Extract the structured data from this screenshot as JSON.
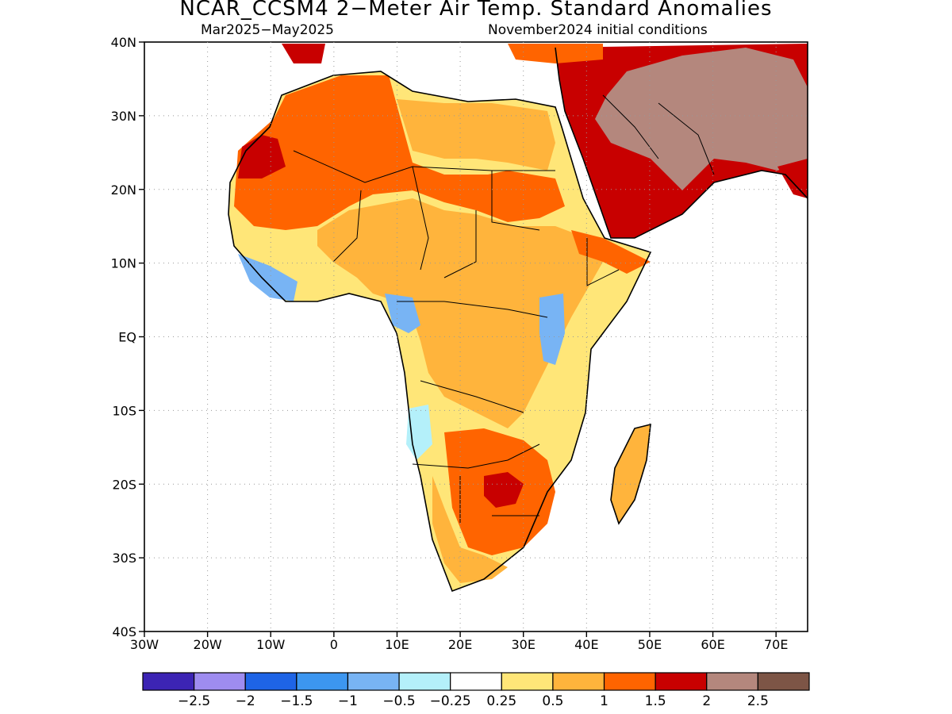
{
  "title": "NCAR_CCSM4 2−Meter Air Temp. Standard Anomalies",
  "subtitle_left": "Mar2025−May2025",
  "subtitle_right": "November2024 initial conditions",
  "lat_labels": [
    "40N",
    "30N",
    "20N",
    "10N",
    "EQ",
    "10S",
    "20S",
    "30S",
    "40S"
  ],
  "lon_labels": [
    "30W",
    "20W",
    "10W",
    "0",
    "10E",
    "20E",
    "30E",
    "40E",
    "50E",
    "60E",
    "70E"
  ],
  "legend": {
    "colors": [
      "#3c24b4",
      "#9e8cf0",
      "#1e64e6",
      "#3c96f0",
      "#78b4f4",
      "#b4f0fa",
      "#ffffff",
      "#ffe678",
      "#ffb43c",
      "#ff6400",
      "#c80000",
      "#b4877d",
      "#7d5546"
    ],
    "labels": [
      "−2.5",
      "−2",
      "−1.5",
      "−1",
      "−0.5",
      "−0.25",
      "0.25",
      "0.5",
      "1",
      "1.5",
      "2",
      "2.5"
    ]
  },
  "regions": [
    {
      "name": "africa-land-mild-warm",
      "color": "#ffe678"
    },
    {
      "name": "warm-anomaly",
      "color": "#ffb43c"
    },
    {
      "name": "strong-warm-anomaly",
      "color": "#ff6400"
    },
    {
      "name": "very-strong-warm-anomaly",
      "color": "#c80000"
    },
    {
      "name": "extreme-warm-anomaly",
      "color": "#b4877d"
    },
    {
      "name": "cool-anomaly",
      "color": "#78b4f4"
    },
    {
      "name": "slight-cool-anomaly",
      "color": "#b4f0fa"
    }
  ]
}
